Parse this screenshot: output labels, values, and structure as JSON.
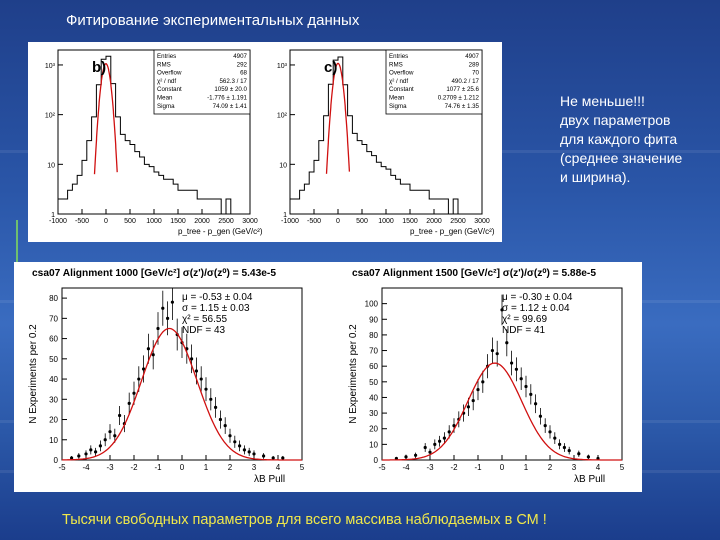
{
  "title": "Фитирование экспериментальных данных",
  "note_lines": [
    "Не меньше!!!",
    "двух параметров",
    "для каждого фита",
    "(среднее значение",
    "и ширина)."
  ],
  "footer": "Тысячи свободных параметров для всего массива наблюдаемых в СМ !",
  "colors": {
    "fit_curve": "#d01010",
    "footer_text": "#f0e84a",
    "hist_line": "#000000"
  },
  "chart_data": [
    {
      "type": "histogram",
      "panel_label": "b)",
      "y_scale": "log",
      "ylim": [
        1,
        2000
      ],
      "y_ticks": [
        "1",
        "10",
        "10²",
        "10³"
      ],
      "xlim": [
        -1000,
        3000
      ],
      "x_ticks": [
        "-1000",
        "-500",
        "0",
        "500",
        "1000",
        "1500",
        "2000",
        "2500",
        "3000"
      ],
      "xlabel": "p_tree - p_gen (GeV/c²)",
      "bin_edges": [
        -1000,
        -900,
        -800,
        -700,
        -600,
        -500,
        -400,
        -300,
        -200,
        -100,
        0,
        100,
        200,
        300,
        400,
        500,
        600,
        700,
        800,
        900,
        1000,
        1100,
        1200,
        1300,
        1400,
        1500,
        1600,
        1700,
        1800,
        1900,
        2000,
        2100,
        2200,
        2300,
        2400,
        2500,
        2600,
        2700,
        2800,
        2900,
        3000
      ],
      "counts": [
        2,
        2,
        3,
        4,
        6,
        12,
        30,
        90,
        400,
        1300,
        1500,
        420,
        90,
        40,
        30,
        25,
        18,
        14,
        10,
        9,
        7,
        6,
        5,
        5,
        4,
        3,
        3,
        3,
        3,
        2,
        2,
        2,
        2,
        2,
        1,
        2,
        1,
        1,
        1,
        1
      ],
      "fit": {
        "mean": -1.776,
        "sigma": 74.09,
        "constant": 1059
      },
      "stats": [
        [
          "Entries",
          "4907"
        ],
        [
          "RMS",
          "292"
        ],
        [
          "Overflow",
          "68"
        ],
        [
          "χ² / ndf",
          "562.3 / 17"
        ],
        [
          "Constant",
          "1059 ± 20.0"
        ],
        [
          "Mean",
          "-1.776 ± 1.191"
        ],
        [
          "Sigma",
          "74.09 ± 1.41"
        ]
      ]
    },
    {
      "type": "histogram",
      "panel_label": "c)",
      "y_scale": "log",
      "ylim": [
        1,
        2000
      ],
      "y_ticks": [
        "1",
        "10",
        "10²",
        "10³"
      ],
      "xlim": [
        -1000,
        3000
      ],
      "x_ticks": [
        "-1000",
        "-500",
        "0",
        "500",
        "1000",
        "1500",
        "2000",
        "2500",
        "3000"
      ],
      "xlabel": "p_tree - p_gen (GeV/c²)",
      "bin_edges": [
        -1000,
        -900,
        -800,
        -700,
        -600,
        -500,
        -400,
        -300,
        -200,
        -100,
        0,
        100,
        200,
        300,
        400,
        500,
        600,
        700,
        800,
        900,
        1000,
        1100,
        1200,
        1300,
        1400,
        1500,
        1600,
        1700,
        1800,
        1900,
        2000,
        2100,
        2200,
        2300,
        2400,
        2500,
        2600,
        2700,
        2800,
        2900,
        3000
      ],
      "counts": [
        2,
        2,
        3,
        4,
        7,
        12,
        30,
        95,
        410,
        1250,
        1450,
        400,
        95,
        42,
        30,
        25,
        18,
        15,
        11,
        9,
        8,
        6,
        5,
        4,
        4,
        3,
        3,
        3,
        3,
        2,
        2,
        2,
        2,
        1,
        2,
        1,
        1,
        1,
        1,
        1
      ],
      "fit": {
        "mean": 0.2709,
        "sigma": 74.76,
        "constant": 1077
      },
      "stats": [
        [
          "Entries",
          "4907"
        ],
        [
          "RMS",
          "289"
        ],
        [
          "Overflow",
          "70"
        ],
        [
          "χ² / ndf",
          "490.2 / 17"
        ],
        [
          "Constant",
          "1077 ± 25.6"
        ],
        [
          "Mean",
          "0.2709 ± 1.212"
        ],
        [
          "Sigma",
          "74.76 ± 1.35"
        ]
      ]
    },
    {
      "type": "scatter",
      "title": "csa07 Alignment 1000 [GeV/c²] σ(z')/σ(z⁰) = 5.43e-5",
      "xlabel": "λB Pull",
      "ylabel": "N Experiments per 0.2",
      "xlim": [
        -5,
        5
      ],
      "ylim": [
        0,
        85
      ],
      "x_ticks": [
        "-5",
        "-4",
        "-3",
        "-2",
        "-1",
        "0",
        "1",
        "2",
        "3",
        "4",
        "5"
      ],
      "y_ticks": [
        "0",
        "10",
        "20",
        "30",
        "40",
        "50",
        "60",
        "70",
        "80"
      ],
      "x": [
        -4.6,
        -4.3,
        -4.0,
        -3.8,
        -3.6,
        -3.4,
        -3.2,
        -3.0,
        -2.8,
        -2.6,
        -2.4,
        -2.2,
        -2.0,
        -1.8,
        -1.6,
        -1.4,
        -1.2,
        -1.0,
        -0.8,
        -0.6,
        -0.4,
        -0.2,
        0.0,
        0.2,
        0.4,
        0.6,
        0.8,
        1.0,
        1.2,
        1.4,
        1.6,
        1.8,
        2.0,
        2.2,
        2.4,
        2.6,
        2.8,
        3.0,
        3.4,
        3.8,
        4.2
      ],
      "y": [
        1,
        2,
        3,
        5,
        4,
        7,
        10,
        14,
        12,
        22,
        18,
        28,
        33,
        40,
        45,
        55,
        52,
        65,
        75,
        70,
        78,
        62,
        58,
        55,
        50,
        44,
        40,
        35,
        30,
        26,
        20,
        17,
        12,
        9,
        7,
        5,
        4,
        3,
        2,
        1,
        1
      ],
      "fit": {
        "mean": -0.53,
        "sigma": 1.15,
        "amplitude": 65
      },
      "stats": [
        "μ = -0.53 ± 0.04",
        "σ = 1.15 ± 0.03",
        "χ² = 56.55",
        "NDF = 43"
      ]
    },
    {
      "type": "scatter",
      "title": "csa07 Alignment 1500 [GeV/c²] σ(z')/σ(z⁰) = 5.88e-5",
      "xlabel": "λB Pull",
      "ylabel": "N Experiments per 0.2",
      "xlim": [
        -5,
        5
      ],
      "ylim": [
        0,
        110
      ],
      "x_ticks": [
        "-5",
        "-4",
        "-3",
        "-2",
        "-1",
        "0",
        "1",
        "2",
        "3",
        "4",
        "5"
      ],
      "y_ticks": [
        "0",
        "10",
        "20",
        "30",
        "40",
        "50",
        "60",
        "70",
        "80",
        "90",
        "100"
      ],
      "x": [
        -4.4,
        -4.0,
        -3.6,
        -3.2,
        -3.0,
        -2.8,
        -2.6,
        -2.4,
        -2.2,
        -2.0,
        -1.8,
        -1.6,
        -1.4,
        -1.2,
        -1.0,
        -0.8,
        -0.6,
        -0.4,
        -0.2,
        0.0,
        0.2,
        0.4,
        0.6,
        0.8,
        1.0,
        1.2,
        1.4,
        1.6,
        1.8,
        2.0,
        2.2,
        2.4,
        2.6,
        2.8,
        3.2,
        3.6,
        4.0
      ],
      "y": [
        1,
        2,
        3,
        8,
        5,
        10,
        12,
        14,
        18,
        22,
        26,
        30,
        34,
        38,
        45,
        50,
        60,
        70,
        68,
        96,
        75,
        62,
        58,
        52,
        47,
        42,
        36,
        28,
        22,
        18,
        14,
        10,
        8,
        6,
        4,
        2,
        1
      ],
      "fit": {
        "mean": -0.3,
        "sigma": 1.12,
        "amplitude": 62
      },
      "stats": [
        "μ = -0.30 ± 0.04",
        "σ = 1.12 ± 0.04",
        "χ² = 99.69",
        "NDF = 41"
      ]
    }
  ]
}
